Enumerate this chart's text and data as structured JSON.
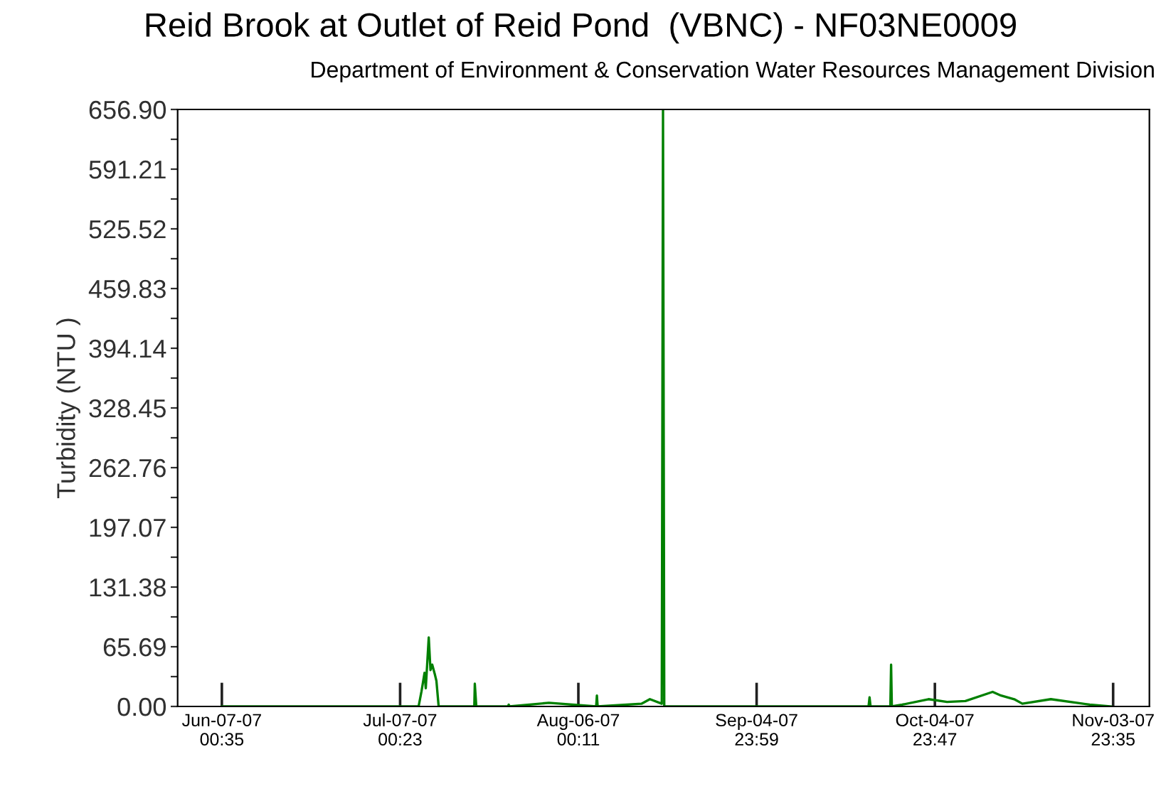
{
  "chart_data": {
    "type": "line",
    "title": "Reid Brook at Outlet of Reid Pond  (VBNC) - NF03NE0009",
    "subtitle": "Department of Environment & Conservation Water Resources Management Division",
    "ylabel": "Turbidity (NTU )",
    "x": [
      "2007-06-07T00:35",
      "2007-07-10T03:00",
      "2007-07-10T15:00",
      "2007-07-11T03:00",
      "2007-07-11T08:00",
      "2007-07-11T20:00",
      "2007-07-12T03:00",
      "2007-07-12T10:00",
      "2007-07-12T20:00",
      "2007-07-13T03:00",
      "2007-07-13T12:00",
      "2007-07-19T12:00",
      "2007-07-19T14:00",
      "2007-07-19T20:00",
      "2007-07-25T04:00",
      "2007-07-25T07:00",
      "2007-07-25T10:00",
      "2007-08-01T01:00",
      "2007-08-09T00:00",
      "2007-08-09T03:00",
      "2007-08-09T06:00",
      "2007-08-16T15:00",
      "2007-08-18T01:00",
      "2007-08-20T01:00",
      "2007-08-20T06:00",
      "2007-08-20T11:00",
      "2007-09-23T20:00",
      "2007-09-24T00:00",
      "2007-09-24T04:00",
      "2007-09-27T12:00",
      "2007-09-27T15:00",
      "2007-09-27T18:00",
      "2007-09-29T12:00",
      "2007-10-03T22:00",
      "2007-10-07T01:00",
      "2007-10-10T03:00",
      "2007-10-14T17:00",
      "2007-10-16T03:00",
      "2007-10-18T08:00",
      "2007-10-19T17:00",
      "2007-10-24T12:00",
      "2007-10-31T01:00",
      "2007-11-03T15:00"
    ],
    "series": [
      {
        "color": "#008000",
        "values": [
          0,
          0,
          17,
          37,
          20,
          76,
          40,
          46,
          36,
          28,
          0,
          0,
          25,
          0,
          0,
          2,
          0,
          4,
          0,
          12,
          0,
          3,
          8,
          3,
          656.9,
          0,
          0,
          10,
          0,
          0,
          46,
          0,
          2,
          8,
          5,
          6,
          16,
          12,
          8,
          3,
          8,
          2,
          0
        ]
      }
    ],
    "xlim": [
      "2007-05-30T14:00",
      "2007-11-10T02:00"
    ],
    "xticks": [
      {
        "value": "2007-06-07T00:35",
        "label": "Jun-07-07\n00:35"
      },
      {
        "value": "2007-07-07T00:23",
        "label": "Jul-07-07\n00:23"
      },
      {
        "value": "2007-08-06T00:11",
        "label": "Aug-06-07\n00:11"
      },
      {
        "value": "2007-09-04T23:59",
        "label": "Sep-04-07\n23:59"
      },
      {
        "value": "2007-10-04T23:47",
        "label": "Oct-04-07\n23:47"
      },
      {
        "value": "2007-11-03T23:35",
        "label": "Nov-03-07\n23:35"
      }
    ],
    "ylim": [
      0,
      656.9
    ],
    "yticks": [
      {
        "value": 0,
        "label": "0.00"
      },
      {
        "value": 32.845,
        "label": null
      },
      {
        "value": 65.69,
        "label": "65.69"
      },
      {
        "value": 98.535,
        "label": null
      },
      {
        "value": 131.38,
        "label": "131.38"
      },
      {
        "value": 164.225,
        "label": null
      },
      {
        "value": 197.07,
        "label": "197.07"
      },
      {
        "value": 229.915,
        "label": null
      },
      {
        "value": 262.76,
        "label": "262.76"
      },
      {
        "value": 295.605,
        "label": null
      },
      {
        "value": 328.45,
        "label": "328.45"
      },
      {
        "value": 361.295,
        "label": null
      },
      {
        "value": 394.14,
        "label": "394.14"
      },
      {
        "value": 426.985,
        "label": null
      },
      {
        "value": 459.83,
        "label": "459.83"
      },
      {
        "value": 492.675,
        "label": null
      },
      {
        "value": 525.52,
        "label": "525.52"
      },
      {
        "value": 558.365,
        "label": null
      },
      {
        "value": 591.21,
        "label": "591.21"
      },
      {
        "value": 624.055,
        "label": null
      },
      {
        "value": 656.9,
        "label": "656.90"
      }
    ],
    "grid": false,
    "marker": "none",
    "line_style": "solid"
  }
}
